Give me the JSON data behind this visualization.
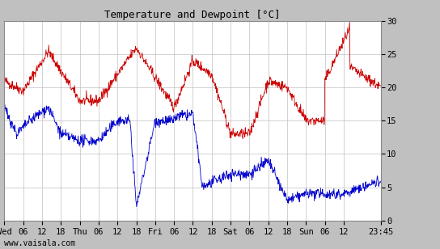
{
  "title": "Temperature and Dewpoint [°C]",
  "bg_color": "#c0c0c0",
  "plot_bg_color": "#ffffff",
  "grid_color": "#c0c0c0",
  "temp_color": "#cc0000",
  "dewp_color": "#0000cc",
  "ylim": [
    0,
    30
  ],
  "yticks": [
    0,
    5,
    10,
    15,
    20,
    25,
    30
  ],
  "xtick_labels": [
    "Wed",
    "06",
    "12",
    "18",
    "Thu",
    "06",
    "12",
    "18",
    "Fri",
    "06",
    "12",
    "18",
    "Sat",
    "06",
    "12",
    "18",
    "Sun",
    "06",
    "12",
    "23:45"
  ],
  "title_fontsize": 9,
  "tick_fontsize": 7.5,
  "watermark_fontsize": 7,
  "watermark": "www.vaisala.com"
}
